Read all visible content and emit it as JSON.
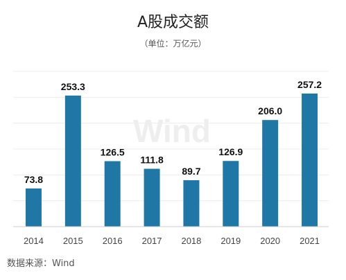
{
  "chart_data": {
    "type": "bar",
    "title": "A股成交额",
    "subtitle": "（单位：万亿元）",
    "categories": [
      "2014",
      "2015",
      "2016",
      "2017",
      "2018",
      "2019",
      "2020",
      "2021"
    ],
    "values": [
      73.8,
      253.3,
      126.5,
      111.8,
      89.7,
      126.9,
      206.0,
      257.2
    ],
    "value_labels": [
      "73.8",
      "253.3",
      "126.5",
      "111.8",
      "89.7",
      "126.9",
      "206.0",
      "257.2"
    ],
    "xlabel": "",
    "ylabel": "",
    "ylim": [
      0,
      300
    ],
    "grid": true,
    "bar_color": "#1f77a5",
    "watermark": "Wind",
    "source": "数据来源：Wind"
  }
}
